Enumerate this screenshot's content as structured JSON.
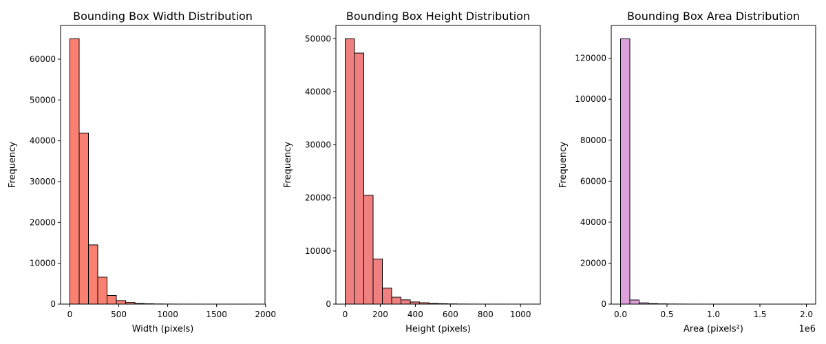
{
  "chart_data": [
    {
      "type": "bar",
      "title": "Bounding Box Width Distribution",
      "xlabel": "Width (pixels)",
      "ylabel": "Frequency",
      "bin_edges": [
        0,
        95,
        190,
        285,
        380,
        475,
        570,
        665,
        760,
        855,
        950,
        1045,
        1140,
        1235,
        1330,
        1425,
        1520,
        1615,
        1710,
        1805,
        1900
      ],
      "values": [
        65000,
        41900,
        14500,
        6600,
        2100,
        850,
        400,
        150,
        80,
        40,
        20,
        10,
        5,
        3,
        2,
        1,
        1,
        0,
        0,
        1
      ],
      "xlim": [
        -95,
        1995
      ],
      "ylim": [
        0,
        68250
      ],
      "xticks": [
        0,
        500,
        1000,
        1500,
        2000
      ],
      "xtick_labels": [
        "0",
        "500",
        "1000",
        "1500",
        "2000"
      ],
      "yticks": [
        0,
        10000,
        20000,
        30000,
        40000,
        50000,
        60000
      ],
      "ytick_labels": [
        "0",
        "10000",
        "20000",
        "30000",
        "40000",
        "50000",
        "60000"
      ],
      "offset_text": "",
      "bar_color": "#fa8072",
      "grid": false
    },
    {
      "type": "bar",
      "title": "Bounding Box Height Distribution",
      "xlabel": "Height (pixels)",
      "ylabel": "Frequency",
      "bin_edges": [
        0,
        53,
        106,
        159,
        212,
        265,
        318,
        371,
        424,
        477,
        530,
        583,
        636,
        689,
        742,
        795,
        848,
        901,
        954,
        1007,
        1060
      ],
      "values": [
        50000,
        47300,
        20500,
        8500,
        3000,
        1300,
        800,
        400,
        250,
        120,
        80,
        40,
        20,
        10,
        5,
        3,
        2,
        1,
        1,
        1
      ],
      "xlim": [
        -53,
        1113
      ],
      "ylim": [
        0,
        52500
      ],
      "xticks": [
        0,
        200,
        400,
        600,
        800,
        1000
      ],
      "xtick_labels": [
        "0",
        "200",
        "400",
        "600",
        "800",
        "1000"
      ],
      "yticks": [
        0,
        10000,
        20000,
        30000,
        40000,
        50000
      ],
      "ytick_labels": [
        "0",
        "10000",
        "20000",
        "30000",
        "40000",
        "50000"
      ],
      "offset_text": "",
      "bar_color": "#f08080",
      "grid": false
    },
    {
      "type": "bar",
      "title": "Bounding Box Area Distribution",
      "xlabel": "Area (pixels²)",
      "ylabel": "Frequency",
      "bin_edges": [
        0,
        100000,
        200000,
        300000,
        400000,
        500000,
        600000,
        700000,
        800000,
        900000,
        1000000,
        1100000,
        1200000,
        1300000,
        1400000,
        1500000,
        1600000,
        1700000,
        1800000,
        1900000,
        2000000
      ],
      "values": [
        129500,
        2000,
        600,
        250,
        120,
        60,
        30,
        15,
        8,
        5,
        3,
        2,
        1,
        1,
        1,
        0,
        0,
        0,
        0,
        1
      ],
      "xlim": [
        -100000,
        2100000
      ],
      "ylim": [
        0,
        136000
      ],
      "xticks": [
        0,
        500000,
        1000000,
        1500000,
        2000000
      ],
      "xtick_labels": [
        "0.0",
        "0.5",
        "1.0",
        "1.5",
        "2.0"
      ],
      "yticks": [
        0,
        20000,
        40000,
        60000,
        80000,
        100000,
        120000
      ],
      "ytick_labels": [
        "0",
        "20000",
        "40000",
        "60000",
        "80000",
        "100000",
        "120000"
      ],
      "offset_text": "1e6",
      "bar_color": "#dda0dd",
      "grid": false
    }
  ]
}
